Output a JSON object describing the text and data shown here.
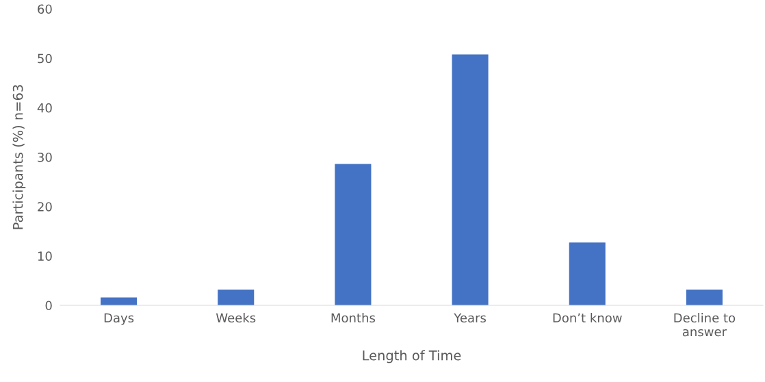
{
  "chart_data": {
    "type": "bar",
    "xlabel": "Length of Time",
    "ylabel": "Participants (%) n=63",
    "categories": [
      "Days",
      "Weeks",
      "Months",
      "Years",
      "Don’t know",
      "Decline to\nanswer"
    ],
    "values": [
      1.6,
      3.2,
      28.6,
      50.8,
      12.7,
      3.2
    ],
    "color": "#4472c4",
    "ylim": [
      0,
      60
    ],
    "yticks": [
      0,
      10,
      20,
      30,
      40,
      50,
      60
    ],
    "grid": false,
    "legend": false
  }
}
